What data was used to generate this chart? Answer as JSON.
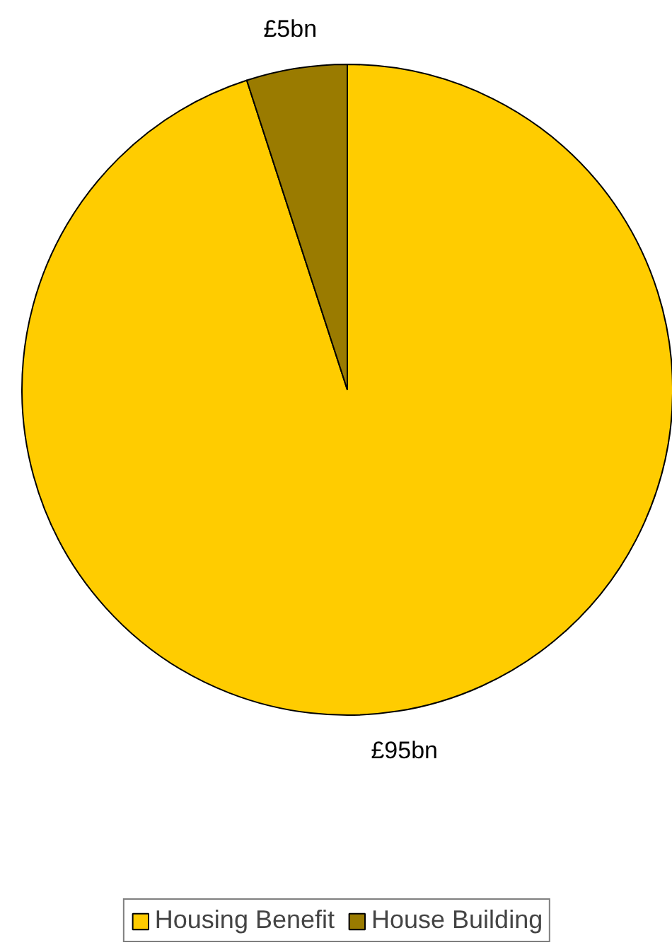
{
  "chart_data": {
    "type": "pie",
    "categories": [
      "Housing Benefit",
      "House Building"
    ],
    "values": [
      95,
      5
    ],
    "colors": [
      "#ffcc00",
      "#9a7b00"
    ],
    "value_labels": [
      "£95bn",
      "£5bn"
    ],
    "legend": "bottom"
  }
}
